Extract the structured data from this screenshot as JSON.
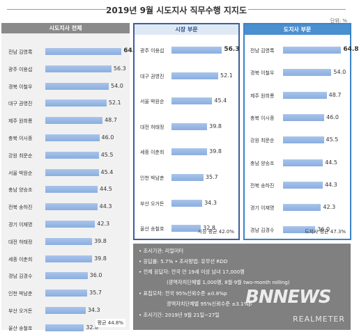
{
  "title": "2019년 9월 시도지사 직무수행 지지도",
  "unit": "단위: %",
  "chart_data": [
    {
      "type": "bar",
      "title": "시도지사 전체",
      "categories": [
        "전남 김영록",
        "광주 이용섭",
        "경북 이철우",
        "대구 권영진",
        "제주 원희룡",
        "충북 이시종",
        "강원 최문순",
        "서울 박원순",
        "충남 양승조",
        "전북 송하진",
        "경기 이재명",
        "대전 허태정",
        "세종 이춘희",
        "경남 김경수",
        "인천 박남춘",
        "부산 오거돈",
        "울산 송철호"
      ],
      "values": [
        64.8,
        56.3,
        54.0,
        52.1,
        48.7,
        46.0,
        45.5,
        45.4,
        44.5,
        44.3,
        42.3,
        39.8,
        39.8,
        36.0,
        35.7,
        34.3,
        32.8
      ],
      "value_labels": [
        "64.8",
        "56.3",
        "54.0",
        "52.1",
        "48.7",
        "46.0",
        "45.5",
        "45.4",
        "44.5",
        "44.3",
        "42.3",
        "39.8",
        "39.8",
        "36.0",
        "35.7",
        "34.3",
        "32.8"
      ],
      "average_label": "평균 44.8%",
      "xlim": [
        0,
        70
      ]
    },
    {
      "type": "bar",
      "title": "시장 부문",
      "categories": [
        "광주 이용섭",
        "대구 권영진",
        "서울 박원순",
        "대전 허태정",
        "세종 이춘희",
        "인천 박남춘",
        "부산 오거돈",
        "울산 송철호"
      ],
      "values": [
        56.3,
        52.1,
        45.4,
        39.8,
        39.8,
        35.7,
        34.3,
        32.8
      ],
      "value_labels": [
        "56.3",
        "52.1",
        "45.4",
        "39.8",
        "39.8",
        "35.7",
        "34.3",
        "32.8"
      ],
      "average_label": "시장 평균 42.0%",
      "xlim": [
        0,
        70
      ]
    },
    {
      "type": "bar",
      "title": "도지사 부문",
      "categories": [
        "전남 김영록",
        "경북 이철우",
        "제주 원희룡",
        "충북 이시종",
        "강원 최문순",
        "충남 양승조",
        "전북 송하진",
        "경기 이재명",
        "경남 김경수"
      ],
      "values": [
        64.8,
        54.0,
        48.7,
        46.0,
        45.5,
        44.5,
        44.3,
        42.3,
        36.0
      ],
      "value_labels": [
        "64.8",
        "54.0",
        "48.7",
        "46.0",
        "45.5",
        "44.5",
        "44.3",
        "42.3",
        "36.0"
      ],
      "average_label": "도지사 평균 47.3%",
      "xlim": [
        0,
        70
      ]
    }
  ],
  "notes": [
    "• 조사기관: 리얼미터",
    "• 응답률: 5.7% • 조사방법: 유무선 RDD",
    "• 전체 응답자: 전국 만 19세 이상 남녀 17,000명",
    "(광역자치단체별 1,000명, 8월·9월 two-month rolling)",
    "• 표집오차: 전국 95%신뢰수준 ±0.8%p",
    "광역자치단체별 95%신뢰수준 ±3.1%p",
    "• 조사기간: 2019년 9월 21일~27일"
  ],
  "watermark": "BNNEWS",
  "watermark_sub": "REALMETER",
  "colors": {
    "head_all": "#8a8a8a",
    "head_city": "#4a73b0",
    "head_prov": "#4a8fd0",
    "border_city": "#3d5f96",
    "border_prov": "#3a84c9",
    "bar": "#9ab9e6",
    "notes_bg": "#808080"
  }
}
